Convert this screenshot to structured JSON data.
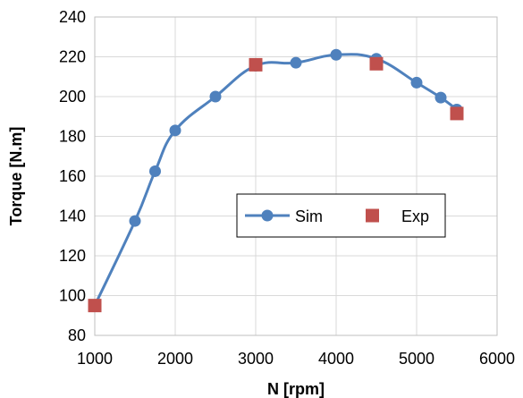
{
  "chart_data": {
    "type": "line",
    "title": "",
    "xlabel": "N [rpm]",
    "ylabel": "Torque [N.m]",
    "xlim": [
      1000,
      6000
    ],
    "ylim": [
      80,
      240
    ],
    "xticks": [
      1000,
      2000,
      3000,
      4000,
      5000,
      6000
    ],
    "yticks": [
      80,
      100,
      120,
      140,
      160,
      180,
      200,
      220,
      240
    ],
    "grid": true,
    "legend": {
      "placement": "center-right",
      "entries": [
        "Sim",
        "Exp"
      ]
    },
    "series": [
      {
        "name": "Sim",
        "style": "line-with-circle-markers",
        "color": "#4f81bd",
        "x": [
          1000,
          1500,
          1750,
          2000,
          2500,
          3000,
          3500,
          4000,
          4500,
          5000,
          5300,
          5500
        ],
        "y": [
          95,
          137.5,
          162.5,
          183,
          200,
          215.5,
          217,
          221,
          219,
          207,
          199.5,
          193.5
        ]
      },
      {
        "name": "Exp",
        "style": "square-markers",
        "color": "#c0504d",
        "x": [
          1000,
          3000,
          4500,
          5500
        ],
        "y": [
          95,
          216,
          216.5,
          191.5
        ]
      }
    ]
  }
}
